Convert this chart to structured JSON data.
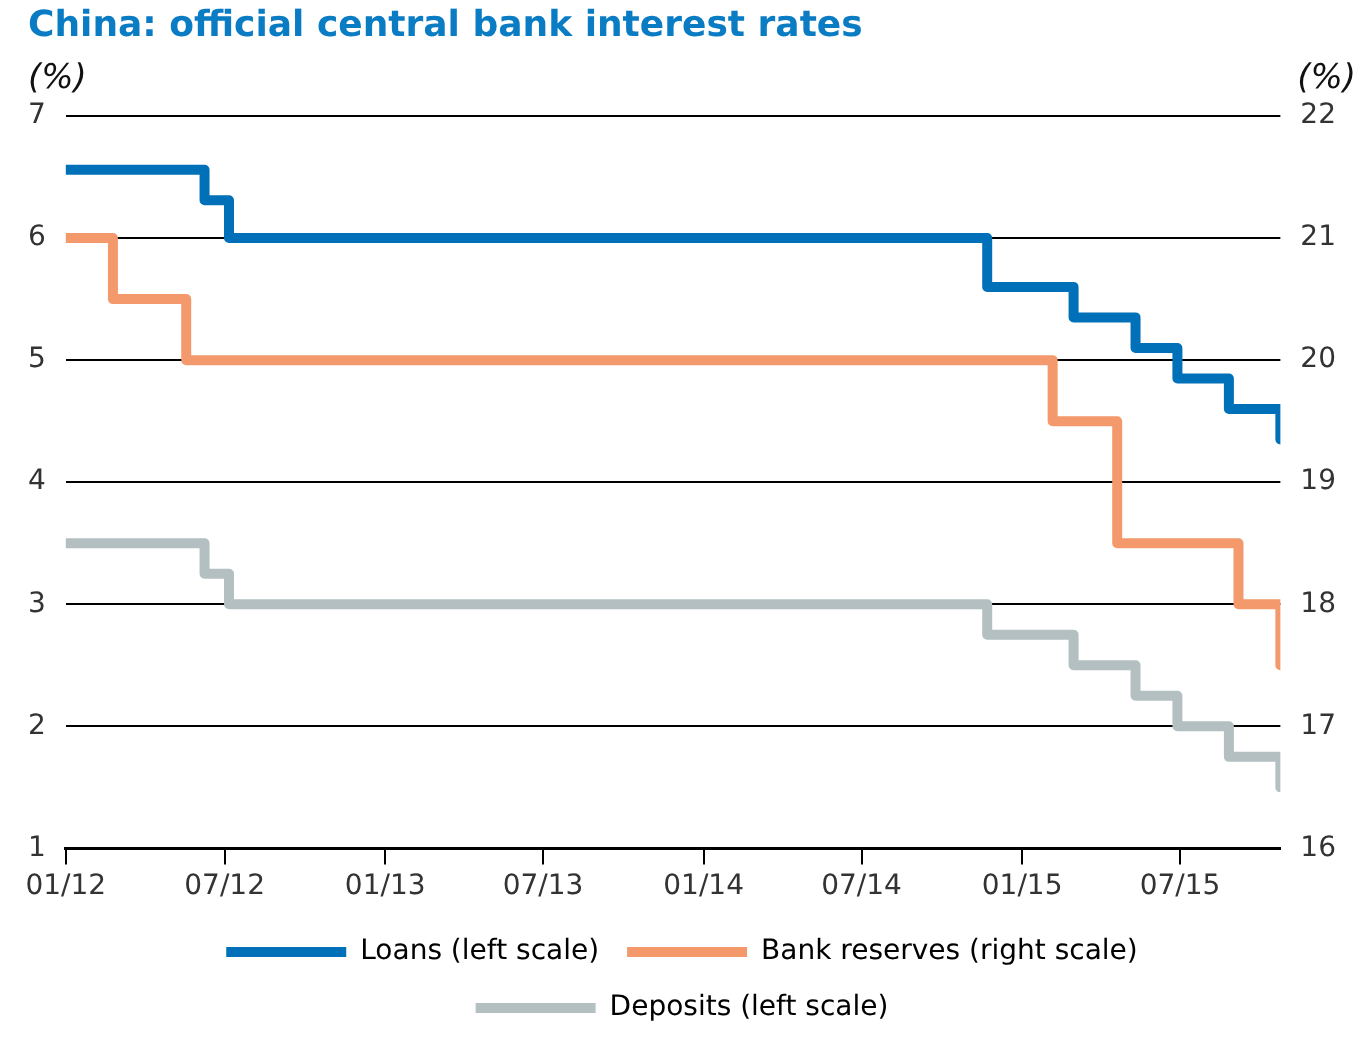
{
  "chart_data": {
    "type": "step",
    "title": "China: official central bank interest rates",
    "ylabel": "(%)",
    "y2label": "(%)",
    "xlim": [
      "2012-01-01",
      "2015-10-24"
    ],
    "xticks": [
      {
        "value": "2012-01-01",
        "label": "01/12"
      },
      {
        "value": "2012-07-01",
        "label": "07/12"
      },
      {
        "value": "2013-01-01",
        "label": "01/13"
      },
      {
        "value": "2013-07-01",
        "label": "07/13"
      },
      {
        "value": "2014-01-01",
        "label": "01/14"
      },
      {
        "value": "2014-07-01",
        "label": "07/14"
      },
      {
        "value": "2015-01-01",
        "label": "01/15"
      },
      {
        "value": "2015-07-01",
        "label": "07/15"
      }
    ],
    "ylim": [
      1,
      7
    ],
    "yticks": [
      1,
      2,
      3,
      4,
      5,
      6,
      7
    ],
    "y2lim": [
      16,
      22
    ],
    "y2ticks": [
      16,
      17,
      18,
      19,
      20,
      21,
      22
    ],
    "grid": "y",
    "legend": "bottom",
    "line_style": "solid",
    "marker": "none",
    "series": [
      {
        "name": "Loans (left scale)",
        "color": "#0070b8",
        "x": [
          "2012-01-01",
          "2012-06-08",
          "2012-07-06",
          "2014-11-22",
          "2015-03-01",
          "2015-05-11",
          "2015-06-28",
          "2015-08-26",
          "2015-10-24"
        ],
        "values": [
          6.56,
          6.31,
          6.0,
          5.6,
          5.35,
          5.1,
          4.85,
          4.6,
          4.35
        ]
      },
      {
        "name": "Bank reserves (right scale)",
        "color": "#f4996b",
        "axis": "y2",
        "x": [
          "2012-01-01",
          "2012-02-24",
          "2012-05-18",
          "2015-02-05",
          "2015-04-20",
          "2015-09-06",
          "2015-10-24"
        ],
        "values": [
          21,
          20.5,
          20,
          19.5,
          18.5,
          18,
          17.5
        ]
      },
      {
        "name": "Deposits (left scale)",
        "color": "#b3bfc1",
        "x": [
          "2012-01-01",
          "2012-06-08",
          "2012-07-06",
          "2014-11-22",
          "2015-03-01",
          "2015-05-11",
          "2015-06-28",
          "2015-08-26",
          "2015-10-24"
        ],
        "values": [
          3.5,
          3.25,
          3.0,
          2.75,
          2.5,
          2.25,
          2.0,
          1.75,
          1.5
        ]
      }
    ]
  }
}
